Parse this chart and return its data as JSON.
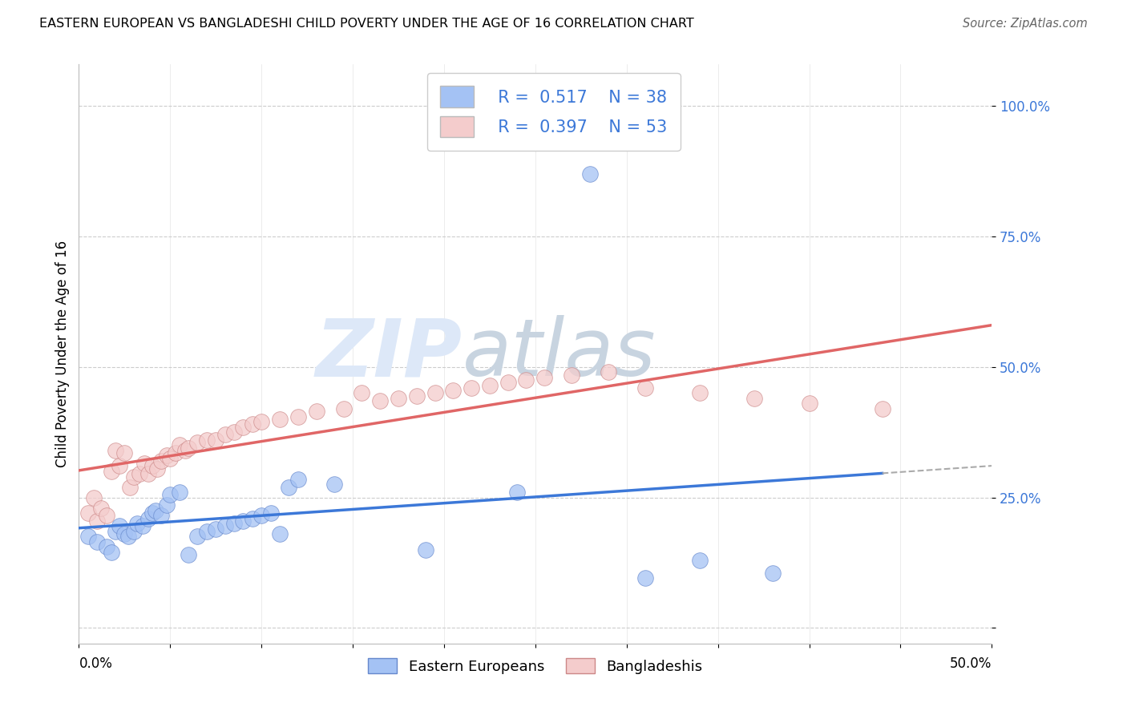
{
  "title": "EASTERN EUROPEAN VS BANGLADESHI CHILD POVERTY UNDER THE AGE OF 16 CORRELATION CHART",
  "source": "Source: ZipAtlas.com",
  "ylabel": "Child Poverty Under the Age of 16",
  "xlim": [
    0.0,
    0.5
  ],
  "ylim": [
    -0.03,
    1.08
  ],
  "ytick_vals": [
    0.0,
    0.25,
    0.5,
    0.75,
    1.0
  ],
  "ytick_labels": [
    "",
    "25.0%",
    "50.0%",
    "75.0%",
    "100.0%"
  ],
  "xtick_vals": [
    0.0,
    0.05,
    0.1,
    0.15,
    0.2,
    0.25,
    0.3,
    0.35,
    0.4,
    0.45,
    0.5
  ],
  "blue_color": "#a4c2f4",
  "pink_color": "#f4cccc",
  "line_blue": "#3c78d8",
  "line_pink": "#e06666",
  "tick_color": "#3c78d8",
  "ee_x": [
    0.005,
    0.01,
    0.015,
    0.018,
    0.02,
    0.022,
    0.025,
    0.027,
    0.03,
    0.032,
    0.035,
    0.038,
    0.04,
    0.042,
    0.045,
    0.048,
    0.05,
    0.055,
    0.06,
    0.065,
    0.07,
    0.075,
    0.08,
    0.085,
    0.09,
    0.095,
    0.1,
    0.105,
    0.11,
    0.115,
    0.12,
    0.14,
    0.19,
    0.24,
    0.28,
    0.31,
    0.34,
    0.38
  ],
  "ee_y": [
    0.175,
    0.165,
    0.155,
    0.145,
    0.185,
    0.195,
    0.18,
    0.175,
    0.185,
    0.2,
    0.195,
    0.21,
    0.22,
    0.225,
    0.215,
    0.235,
    0.255,
    0.26,
    0.14,
    0.175,
    0.185,
    0.19,
    0.195,
    0.2,
    0.205,
    0.21,
    0.215,
    0.22,
    0.18,
    0.27,
    0.285,
    0.275,
    0.15,
    0.26,
    0.87,
    0.095,
    0.13,
    0.105
  ],
  "bd_x": [
    0.005,
    0.008,
    0.01,
    0.012,
    0.015,
    0.018,
    0.02,
    0.022,
    0.025,
    0.028,
    0.03,
    0.033,
    0.036,
    0.038,
    0.04,
    0.043,
    0.045,
    0.048,
    0.05,
    0.053,
    0.055,
    0.058,
    0.06,
    0.065,
    0.07,
    0.075,
    0.08,
    0.085,
    0.09,
    0.095,
    0.1,
    0.11,
    0.12,
    0.13,
    0.145,
    0.155,
    0.165,
    0.175,
    0.185,
    0.195,
    0.205,
    0.215,
    0.225,
    0.235,
    0.245,
    0.255,
    0.27,
    0.29,
    0.31,
    0.34,
    0.37,
    0.4,
    0.44
  ],
  "bd_y": [
    0.22,
    0.25,
    0.205,
    0.23,
    0.215,
    0.3,
    0.34,
    0.31,
    0.335,
    0.27,
    0.29,
    0.295,
    0.315,
    0.295,
    0.31,
    0.305,
    0.32,
    0.33,
    0.325,
    0.335,
    0.35,
    0.34,
    0.345,
    0.355,
    0.36,
    0.36,
    0.37,
    0.375,
    0.385,
    0.39,
    0.395,
    0.4,
    0.405,
    0.415,
    0.42,
    0.45,
    0.435,
    0.44,
    0.445,
    0.45,
    0.455,
    0.46,
    0.465,
    0.47,
    0.475,
    0.48,
    0.485,
    0.49,
    0.46,
    0.45,
    0.44,
    0.43,
    0.42
  ]
}
